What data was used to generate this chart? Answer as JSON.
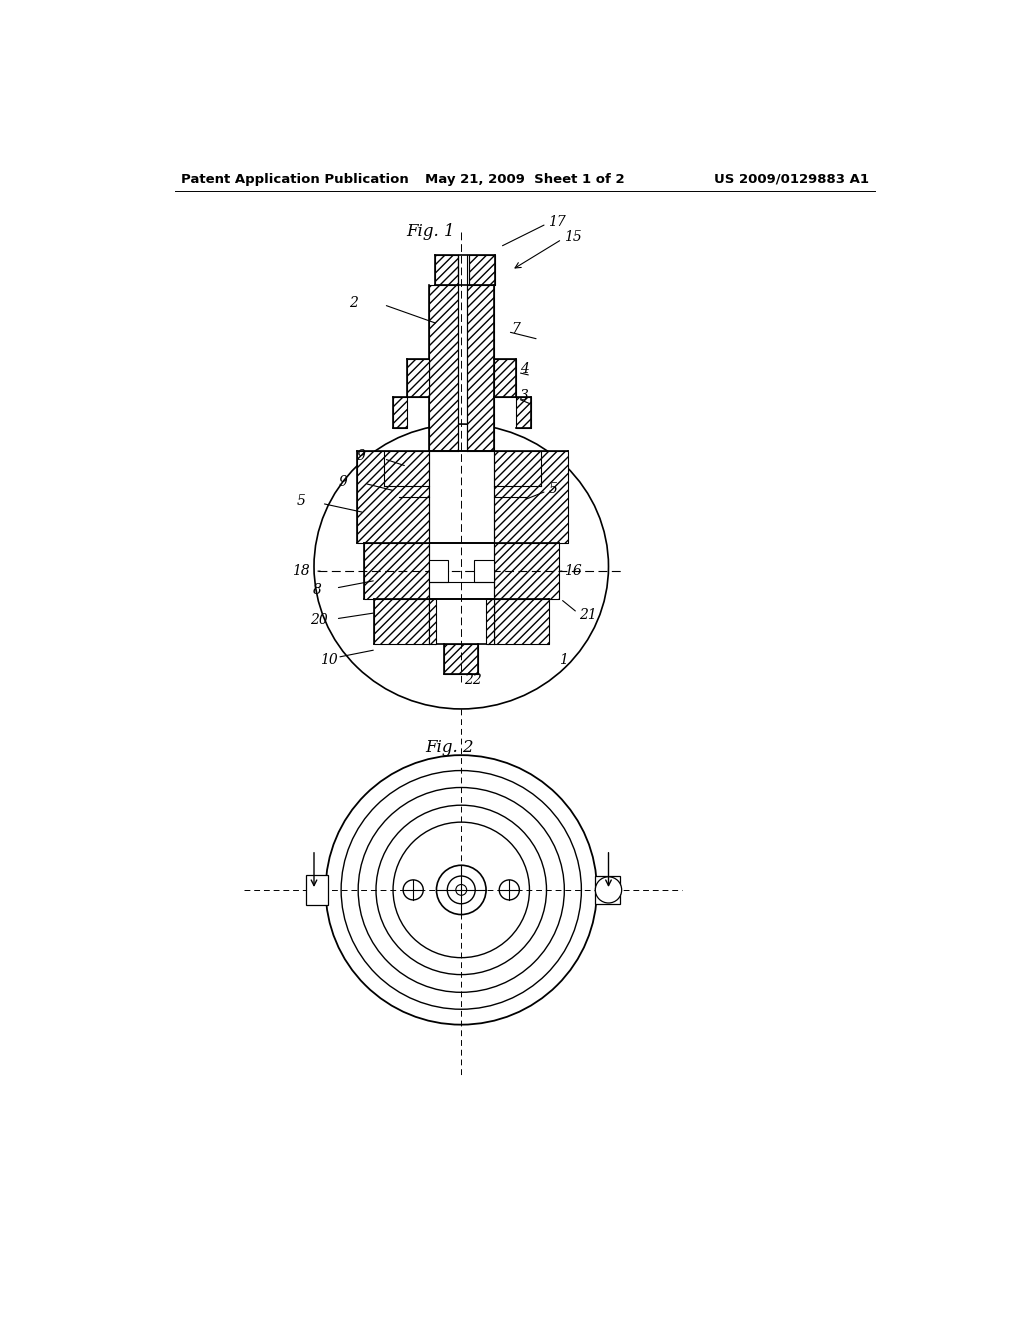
{
  "background_color": "#ffffff",
  "header_left": "Patent Application Publication",
  "header_middle": "May 21, 2009  Sheet 1 of 2",
  "header_right": "US 2009/0129883 A1",
  "fig1_label": "Fig. 1",
  "fig2_label": "Fig. 2",
  "line_color": "#000000",
  "label_fontsize": 10,
  "header_fontsize": 9.5,
  "fig_label_fontsize": 12
}
